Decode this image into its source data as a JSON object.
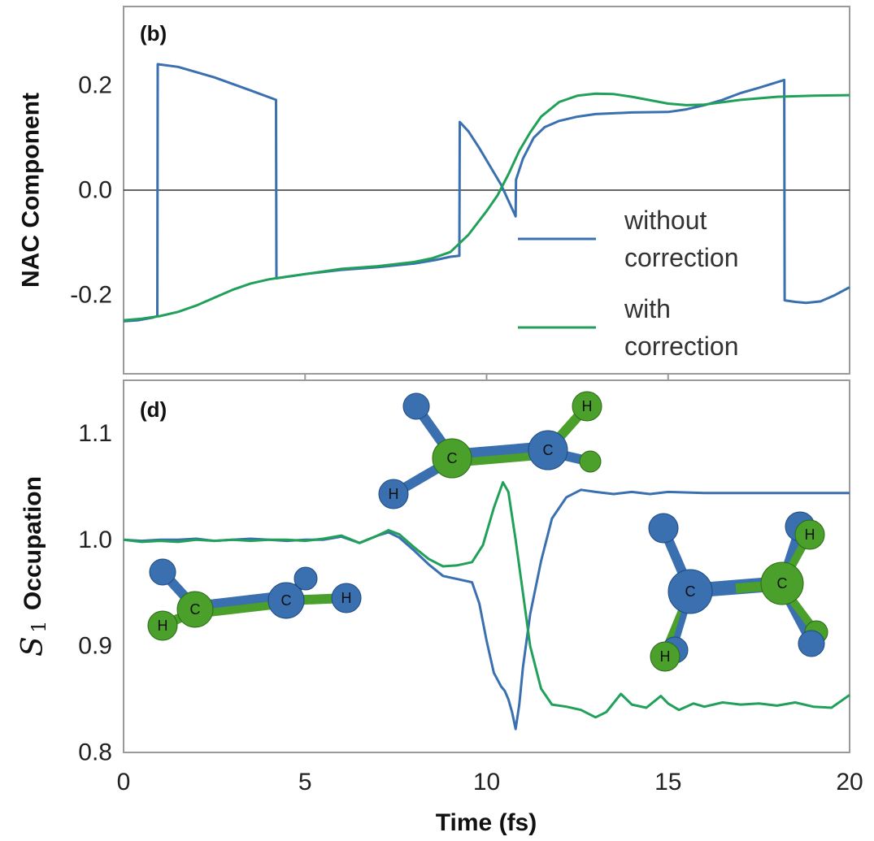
{
  "chart_data": [
    {
      "type": "line",
      "panel_label": "(b)",
      "ylabel": "NAC Component",
      "xlim": [
        0,
        20
      ],
      "ylim": [
        -0.35,
        0.35
      ],
      "yticks": [
        "0.2",
        "0.0",
        "-0.2"
      ],
      "ytick_values": [
        0.2,
        0.0,
        -0.2
      ],
      "zero_line": true,
      "legend": {
        "placement": "bottom-right",
        "entries": [
          {
            "line1": "without",
            "line2": "correction"
          },
          {
            "line1": "with",
            "line2": "correction"
          }
        ]
      },
      "series": [
        {
          "name": "without correction",
          "color": "#3a6fb0",
          "x": [
            0.0,
            0.4,
            0.8,
            0.93,
            0.94,
            1.5,
            2.5,
            3.5,
            4.2,
            4.21,
            5.0,
            6.0,
            7.0,
            8.0,
            8.6,
            9.0,
            9.25,
            9.26,
            9.5,
            9.8,
            10.1,
            10.4,
            10.6,
            10.8,
            10.81,
            11.0,
            11.3,
            11.6,
            12.0,
            12.5,
            13.0,
            14.0,
            15.0,
            15.5,
            16.0,
            16.5,
            17.0,
            17.5,
            18.2,
            18.21,
            18.5,
            18.8,
            19.2,
            19.6,
            20.0
          ],
          "y": [
            -0.25,
            -0.248,
            -0.243,
            -0.24,
            0.24,
            0.235,
            0.215,
            0.19,
            0.172,
            -0.168,
            -0.16,
            -0.152,
            -0.147,
            -0.14,
            -0.133,
            -0.127,
            -0.125,
            0.13,
            0.112,
            0.08,
            0.045,
            0.01,
            -0.02,
            -0.05,
            0.02,
            0.06,
            0.1,
            0.12,
            0.132,
            0.14,
            0.145,
            0.148,
            0.149,
            0.154,
            0.162,
            0.172,
            0.185,
            0.195,
            0.21,
            -0.21,
            -0.213,
            -0.215,
            -0.212,
            -0.2,
            -0.185
          ]
        },
        {
          "name": "with correction",
          "color": "#21a05a",
          "x": [
            0.0,
            0.5,
            1.0,
            1.5,
            2.0,
            2.5,
            3.0,
            3.5,
            4.0,
            4.5,
            5.0,
            6.0,
            7.0,
            8.0,
            8.5,
            9.0,
            9.5,
            10.0,
            10.3,
            10.6,
            10.9,
            11.2,
            11.5,
            12.0,
            12.5,
            13.0,
            13.5,
            14.0,
            15.0,
            15.5,
            16.0,
            17.0,
            18.0,
            19.0,
            20.0
          ],
          "y": [
            -0.248,
            -0.245,
            -0.24,
            -0.232,
            -0.22,
            -0.205,
            -0.19,
            -0.178,
            -0.17,
            -0.165,
            -0.16,
            -0.15,
            -0.145,
            -0.137,
            -0.13,
            -0.118,
            -0.085,
            -0.04,
            -0.01,
            0.03,
            0.075,
            0.11,
            0.14,
            0.168,
            0.18,
            0.184,
            0.183,
            0.178,
            0.165,
            0.162,
            0.163,
            0.172,
            0.178,
            0.18,
            0.181
          ]
        }
      ]
    },
    {
      "type": "line",
      "panel_label": "(d)",
      "ylabel_symbol": "S",
      "ylabel_sub": "1",
      "ylabel_text": "Occupation",
      "xlabel": "Time (fs)",
      "xlim": [
        0,
        20
      ],
      "ylim": [
        0.8,
        1.15
      ],
      "xticks": [
        "0",
        "5",
        "10",
        "15",
        "20"
      ],
      "xtick_values": [
        0,
        5,
        10,
        15,
        20
      ],
      "yticks": [
        "1.1",
        "1.0",
        "0.9",
        "0.8"
      ],
      "ytick_values": [
        1.1,
        1.0,
        0.9,
        0.8
      ],
      "series": [
        {
          "name": "without correction",
          "color": "#3a6fb0",
          "x": [
            0.0,
            0.5,
            1.0,
            1.5,
            2.0,
            2.5,
            3.0,
            3.5,
            4.0,
            4.5,
            5.0,
            5.5,
            6.0,
            6.5,
            7.0,
            7.3,
            7.6,
            8.0,
            8.4,
            8.8,
            9.2,
            9.6,
            9.8,
            10.0,
            10.2,
            10.4,
            10.5,
            10.6,
            10.7,
            10.8,
            10.9,
            11.0,
            11.2,
            11.5,
            11.8,
            12.2,
            12.6,
            13.0,
            13.5,
            14.0,
            14.5,
            15.0,
            16.0,
            17.0,
            18.0,
            19.0,
            20.0
          ],
          "y": [
            1.0,
            0.999,
            1.0,
            1.0,
            1.001,
            0.999,
            1.0,
            1.001,
            1.0,
            0.999,
            1.0,
            1.0,
            1.003,
            0.997,
            1.004,
            1.007,
            1.002,
            0.99,
            0.977,
            0.966,
            0.963,
            0.96,
            0.94,
            0.905,
            0.875,
            0.862,
            0.858,
            0.85,
            0.838,
            0.822,
            0.845,
            0.88,
            0.93,
            0.98,
            1.02,
            1.04,
            1.047,
            1.045,
            1.043,
            1.045,
            1.043,
            1.045,
            1.044,
            1.044,
            1.044,
            1.044,
            1.044
          ]
        },
        {
          "name": "with correction",
          "color": "#21a05a",
          "x": [
            0.0,
            0.5,
            1.0,
            1.5,
            2.0,
            2.5,
            3.0,
            3.5,
            4.0,
            4.5,
            5.0,
            5.5,
            6.0,
            6.5,
            7.0,
            7.3,
            7.6,
            8.0,
            8.4,
            8.8,
            9.2,
            9.6,
            9.9,
            10.2,
            10.45,
            10.6,
            10.8,
            11.0,
            11.2,
            11.5,
            11.8,
            12.2,
            12.6,
            13.0,
            13.3,
            13.7,
            14.0,
            14.4,
            14.8,
            15.0,
            15.3,
            15.7,
            16.0,
            16.5,
            17.0,
            17.5,
            18.0,
            18.5,
            19.0,
            19.5,
            20.0
          ],
          "y": [
            1.0,
            0.998,
            0.999,
            0.998,
            1.0,
            0.999,
            1.0,
            0.999,
            1.0,
            1.0,
            0.999,
            1.001,
            1.004,
            0.997,
            1.004,
            1.009,
            1.005,
            0.993,
            0.982,
            0.975,
            0.976,
            0.979,
            0.995,
            1.03,
            1.054,
            1.045,
            1.0,
            0.95,
            0.9,
            0.86,
            0.845,
            0.843,
            0.84,
            0.833,
            0.838,
            0.855,
            0.845,
            0.842,
            0.853,
            0.846,
            0.84,
            0.846,
            0.843,
            0.847,
            0.845,
            0.846,
            0.844,
            0.847,
            0.843,
            0.842,
            0.854
          ]
        }
      ],
      "molecules": [
        {
          "name": "molecule-left",
          "atom_labels": [
            "C",
            "C",
            "H",
            "H"
          ]
        },
        {
          "name": "molecule-top",
          "atom_labels": [
            "C",
            "C",
            "H",
            "H"
          ]
        },
        {
          "name": "molecule-right",
          "atom_labels": [
            "C",
            "C",
            "H",
            "H"
          ]
        }
      ]
    }
  ]
}
